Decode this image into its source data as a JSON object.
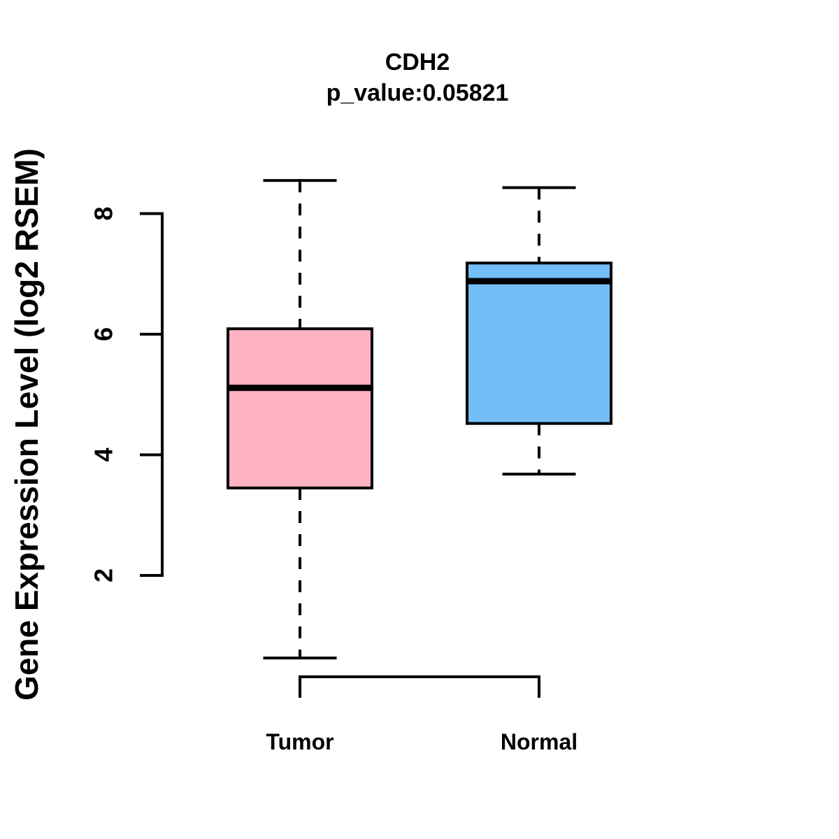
{
  "title": "CDH2",
  "subtitle": "p_value:0.05821",
  "y_axis": {
    "label": "Gene Expression Level (log2 RSEM)",
    "ticks": [
      "2",
      "4",
      "6",
      "8"
    ]
  },
  "x_axis": {
    "categories": [
      "Tumor",
      "Normal"
    ]
  },
  "colors": {
    "tumor_fill": "#FFB2C1",
    "normal_fill": "#74BEF7",
    "stroke": "#000000",
    "background": "#FFFFFF"
  },
  "chart_data": {
    "type": "boxplot",
    "title": "CDH2",
    "subtitle": "p_value:0.05821",
    "ylabel": "Gene Expression Level (log2 RSEM)",
    "ylim": [
      0.4,
      8.8
    ],
    "yticks": [
      2,
      4,
      6,
      8
    ],
    "grid": false,
    "legend": "none",
    "categories": [
      "Tumor",
      "Normal"
    ],
    "series": [
      {
        "name": "Tumor",
        "min": 0.63,
        "q1": 3.45,
        "median": 5.11,
        "q3": 6.09,
        "max": 8.55,
        "outliers": [],
        "fill": "#FFB2C1"
      },
      {
        "name": "Normal",
        "min": 3.68,
        "q1": 4.52,
        "median": 6.88,
        "q3": 7.18,
        "max": 8.43,
        "outliers": [],
        "fill": "#74BEF7"
      }
    ]
  }
}
